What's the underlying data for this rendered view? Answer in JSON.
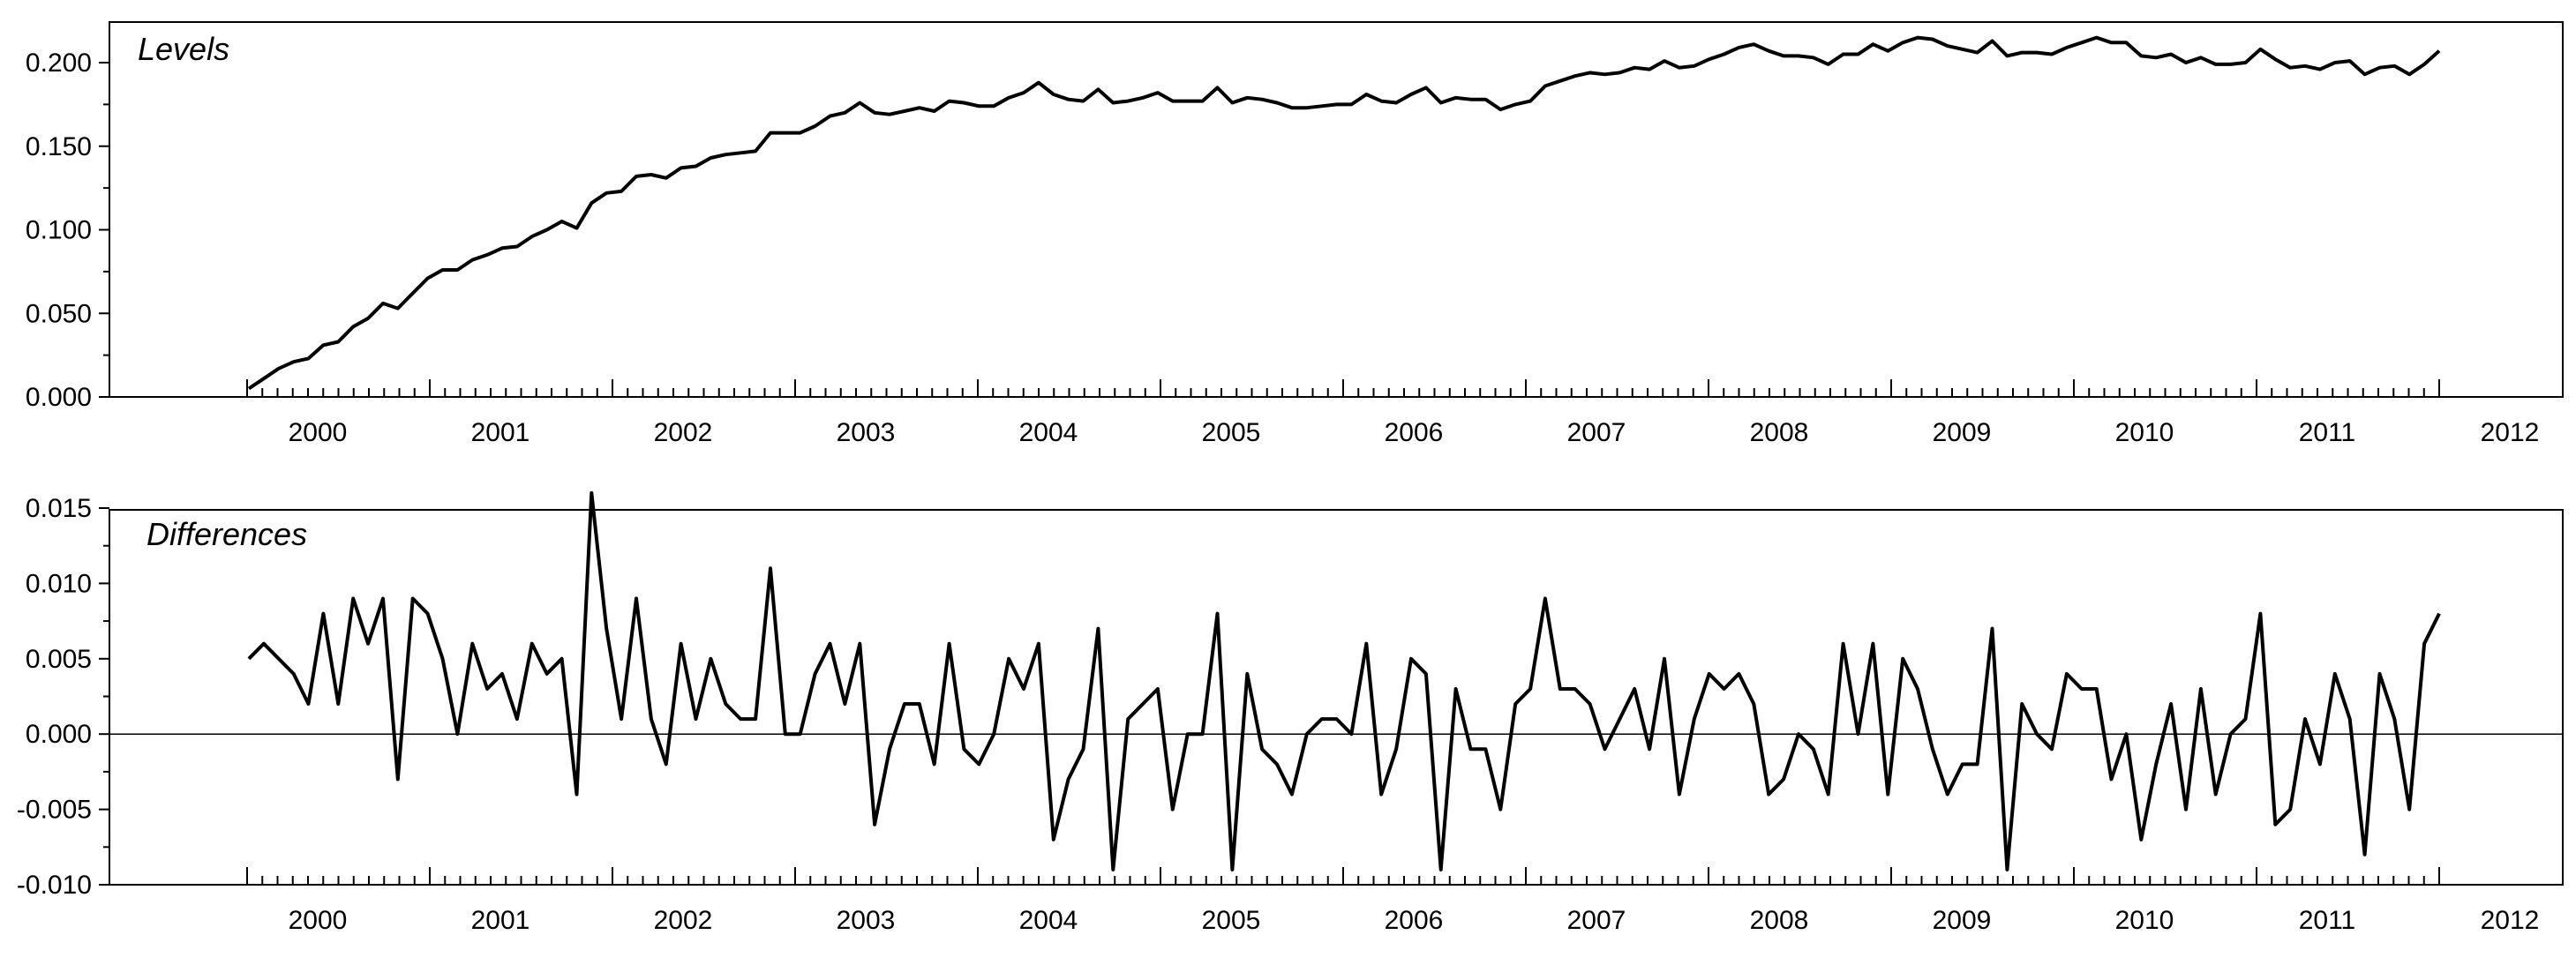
{
  "chart_data": [
    {
      "type": "line",
      "title": "Levels",
      "x_start": "2000-01",
      "x_end": "2012-01",
      "frequency": "monthly",
      "x_tick_labels": [
        "2000",
        "2001",
        "2002",
        "2003",
        "2004",
        "2005",
        "2006",
        "2007",
        "2008",
        "2009",
        "2010",
        "2011",
        "2012"
      ],
      "y_tick_labels": [
        "0.000",
        "0.050",
        "0.100",
        "0.150",
        "0.200"
      ],
      "ylim": [
        0.0,
        0.22
      ],
      "grid": false,
      "line_color": "#000000",
      "series": [
        {
          "values": [
            0.005,
            0.011,
            0.017,
            0.021,
            0.023,
            0.031,
            0.033,
            0.042,
            0.047,
            0.056,
            0.053,
            0.062,
            0.071,
            0.076,
            0.076,
            0.082,
            0.085,
            0.089,
            0.09,
            0.096,
            0.1,
            0.105,
            0.101,
            0.116,
            0.122,
            0.123,
            0.132,
            0.133,
            0.131,
            0.137,
            0.138,
            0.143,
            0.145,
            0.146,
            0.147,
            0.158,
            0.158,
            0.158,
            0.162,
            0.168,
            0.17,
            0.176,
            0.17,
            0.169,
            0.171,
            0.173,
            0.171,
            0.177,
            0.176,
            0.174,
            0.174,
            0.179,
            0.182,
            0.188,
            0.181,
            0.178,
            0.177,
            0.184,
            0.176,
            0.177,
            0.179,
            0.182,
            0.177,
            0.177,
            0.177,
            0.185,
            0.176,
            0.179,
            0.178,
            0.176,
            0.173,
            0.173,
            0.174,
            0.175,
            0.175,
            0.181,
            0.177,
            0.176,
            0.181,
            0.185,
            0.176,
            0.179,
            0.178,
            0.178,
            0.172,
            0.175,
            0.177,
            0.186,
            0.189,
            0.192,
            0.194,
            0.193,
            0.194,
            0.197,
            0.196,
            0.201,
            0.197,
            0.198,
            0.202,
            0.205,
            0.209,
            0.211,
            0.207,
            0.204,
            0.204,
            0.203,
            0.199,
            0.205,
            0.205,
            0.211,
            0.207,
            0.212,
            0.215,
            0.214,
            0.21,
            0.208,
            0.206,
            0.213,
            0.204,
            0.206,
            0.206,
            0.205,
            0.209,
            0.212,
            0.215,
            0.212,
            0.212,
            0.204,
            0.203,
            0.205,
            0.2,
            0.203,
            0.199,
            0.199,
            0.2,
            0.208,
            0.202,
            0.197,
            0.198,
            0.196,
            0.2,
            0.201,
            0.193,
            0.197,
            0.198,
            0.193,
            0.199,
            0.207
          ]
        }
      ]
    },
    {
      "type": "line",
      "title": "Differences",
      "x_start": "2000-01",
      "x_end": "2012-01",
      "frequency": "monthly",
      "x_tick_labels": [
        "2000",
        "2001",
        "2002",
        "2003",
        "2004",
        "2005",
        "2006",
        "2007",
        "2008",
        "2009",
        "2010",
        "2011",
        "2012"
      ],
      "y_tick_labels": [
        "-0.010",
        "-0.005",
        "0.000",
        "0.005",
        "0.010",
        "0.015"
      ],
      "ylim": [
        -0.01,
        0.015
      ],
      "zero_line": true,
      "grid": false,
      "line_color": "#000000",
      "series": [
        {
          "values": [
            0.005,
            0.006,
            0.005,
            0.004,
            0.002,
            0.008,
            0.002,
            0.009,
            0.006,
            0.009,
            -0.003,
            0.009,
            0.008,
            0.005,
            0.0,
            0.006,
            0.003,
            0.004,
            0.001,
            0.006,
            0.004,
            0.005,
            -0.004,
            0.016,
            0.007,
            0.001,
            0.009,
            0.001,
            -0.002,
            0.006,
            0.001,
            0.005,
            0.002,
            0.001,
            0.001,
            0.011,
            0.0,
            0.0,
            0.004,
            0.006,
            0.002,
            0.006,
            -0.006,
            -0.001,
            0.002,
            0.002,
            -0.002,
            0.006,
            -0.001,
            -0.002,
            0.0,
            0.005,
            0.003,
            0.006,
            -0.007,
            -0.003,
            -0.001,
            0.007,
            -0.009,
            0.001,
            0.002,
            0.003,
            -0.005,
            0.0,
            0.0,
            0.008,
            -0.009,
            0.004,
            -0.001,
            -0.002,
            -0.004,
            0.0,
            0.001,
            0.001,
            0.0,
            0.006,
            -0.004,
            -0.001,
            0.005,
            0.004,
            -0.009,
            0.003,
            -0.001,
            -0.001,
            -0.005,
            0.002,
            0.003,
            0.009,
            0.003,
            0.003,
            0.002,
            -0.001,
            0.001,
            0.003,
            -0.001,
            0.005,
            -0.004,
            0.001,
            0.004,
            0.003,
            0.004,
            0.002,
            -0.004,
            -0.003,
            0.0,
            -0.001,
            -0.004,
            0.006,
            0.0,
            0.006,
            -0.004,
            0.005,
            0.003,
            -0.001,
            -0.004,
            -0.002,
            -0.002,
            0.007,
            -0.009,
            0.002,
            0.0,
            -0.001,
            0.004,
            0.003,
            0.003,
            -0.003,
            0.0,
            -0.007,
            -0.002,
            0.002,
            -0.005,
            0.003,
            -0.004,
            0.0,
            0.001,
            0.008,
            -0.006,
            -0.005,
            0.001,
            -0.002,
            0.004,
            0.001,
            -0.008,
            0.004,
            0.001,
            -0.005,
            0.006,
            0.008
          ]
        }
      ]
    }
  ]
}
